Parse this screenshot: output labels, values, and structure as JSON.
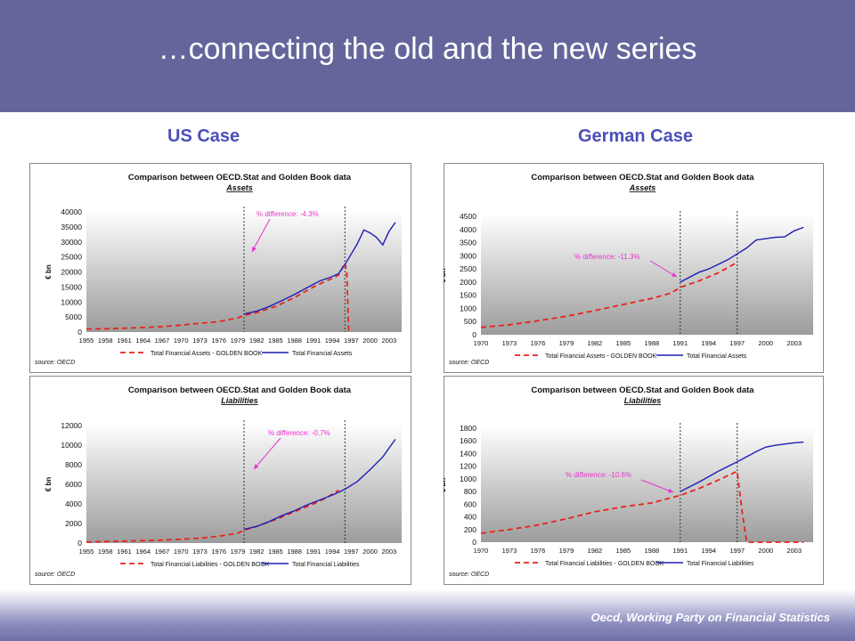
{
  "slide": {
    "title": "…connecting the old and the new series",
    "left_heading": "US Case",
    "right_heading": "German Case",
    "footer": "Oecd, Working Party on Financial Statistics"
  },
  "colors": {
    "header_bg": "#64669b",
    "heading_text": "#4b4fb8",
    "golden_book": "#e8231c",
    "oecd_stat": "#1f1fb5",
    "annotation": "#e832d0"
  },
  "chart_data": [
    {
      "id": "us-assets",
      "type": "line",
      "title": "Comparison between OECD.Stat and Golden Book data",
      "subtitle": "Assets",
      "xlabel": "",
      "ylabel": "€ bn",
      "xlim": [
        1955,
        2005
      ],
      "ylim": [
        0,
        40000
      ],
      "y_ticks": [
        0,
        5000,
        10000,
        15000,
        20000,
        25000,
        30000,
        35000,
        40000
      ],
      "x_ticks": [
        "1955",
        "1958",
        "1961",
        "1964",
        "1967",
        "1970",
        "1973",
        "1976",
        "1979",
        "1982",
        "1985",
        "1988",
        "1991",
        "1994",
        "1997",
        "2000",
        "2003"
      ],
      "vlines": [
        1980,
        1996
      ],
      "annotation": "% difference: -4.3%",
      "source": "source: OECD",
      "legend_position": "bottom",
      "series": [
        {
          "name": "Total Financial Assets - GOLDEN BOOK",
          "style": "dashed",
          "color": "#e8231c",
          "x": [
            1955,
            1958,
            1961,
            1964,
            1967,
            1970,
            1973,
            1976,
            1979,
            1980,
            1982,
            1985,
            1988,
            1991,
            1993,
            1994,
            1995,
            1996,
            1996.3,
            1996.6
          ],
          "y": [
            1000,
            1100,
            1300,
            1500,
            1800,
            2300,
            2900,
            3500,
            4700,
            5500,
            6500,
            8500,
            11500,
            15000,
            17000,
            17800,
            19000,
            23000,
            20000,
            200
          ]
        },
        {
          "name": "Total Financial Assets",
          "style": "solid",
          "color": "#1f1fb5",
          "x": [
            1980,
            1982,
            1984,
            1986,
            1988,
            1990,
            1992,
            1994,
            1995,
            1996,
            1997,
            1998,
            1999,
            2000,
            2001,
            2002,
            2003,
            2004
          ],
          "y": [
            6000,
            7000,
            8500,
            10500,
            12500,
            14800,
            17000,
            18500,
            19500,
            22500,
            26000,
            29500,
            34000,
            33000,
            31500,
            29000,
            33500,
            36500
          ]
        }
      ]
    },
    {
      "id": "us-liabilities",
      "type": "line",
      "title": "Comparison between OECD.Stat and Golden Book data",
      "subtitle": "Liabilities",
      "xlabel": "",
      "ylabel": "€ bn",
      "xlim": [
        1955,
        2005
      ],
      "ylim": [
        0,
        12000
      ],
      "y_ticks": [
        0,
        2000,
        4000,
        6000,
        8000,
        10000,
        12000
      ],
      "x_ticks": [
        "1955",
        "1958",
        "1961",
        "1964",
        "1967",
        "1970",
        "1973",
        "1976",
        "1979",
        "1982",
        "1985",
        "1988",
        "1991",
        "1994",
        "1997",
        "2000",
        "2003"
      ],
      "vlines": [
        1980,
        1996
      ],
      "annotation": "% difference: -0.7%",
      "source": "source: OECD",
      "legend_position": "bottom",
      "series": [
        {
          "name": "Total Financial Liabilities - GOLDEN BOOK",
          "style": "dashed",
          "color": "#e8231c",
          "x": [
            1955,
            1958,
            1961,
            1964,
            1967,
            1970,
            1973,
            1976,
            1979,
            1980,
            1982,
            1985,
            1988,
            1991,
            1993,
            1995
          ],
          "y": [
            100,
            150,
            200,
            250,
            300,
            400,
            500,
            700,
            1000,
            1300,
            1700,
            2400,
            3200,
            4000,
            4600,
            5400
          ]
        },
        {
          "name": "Total Financial Liabilities",
          "style": "solid",
          "color": "#1f1fb5",
          "x": [
            1980,
            1982,
            1984,
            1986,
            1988,
            1990,
            1992,
            1994,
            1996,
            1998,
            2000,
            2002,
            2004
          ],
          "y": [
            1400,
            1700,
            2200,
            2800,
            3300,
            3900,
            4400,
            4900,
            5500,
            6300,
            7500,
            8800,
            10600
          ]
        }
      ]
    },
    {
      "id": "de-assets",
      "type": "line",
      "title": "Comparison between OECD.Stat and Golden Book data",
      "subtitle": "Assets",
      "xlabel": "",
      "ylabel": "€ bn",
      "xlim": [
        1970,
        2005
      ],
      "ylim": [
        0,
        4500
      ],
      "y_ticks": [
        0,
        500,
        1000,
        1500,
        2000,
        2500,
        3000,
        3500,
        4000,
        4500
      ],
      "x_ticks": [
        "1970",
        "1973",
        "1976",
        "1979",
        "1982",
        "1985",
        "1988",
        "1991",
        "1994",
        "1997",
        "2000",
        "2003"
      ],
      "vlines": [
        1991,
        1997
      ],
      "annotation": "% difference: -11.3%",
      "source": "source: OECD",
      "legend_position": "bottom",
      "series": [
        {
          "name": "Total Financial Assets - GOLDEN BOOK",
          "style": "dashed",
          "color": "#e8231c",
          "x": [
            1970,
            1973,
            1976,
            1979,
            1982,
            1985,
            1988,
            1990,
            1991,
            1993,
            1995,
            1997
          ],
          "y": [
            280,
            380,
            530,
            700,
            920,
            1150,
            1380,
            1580,
            1800,
            2050,
            2350,
            2750
          ]
        },
        {
          "name": "Total Financial Assets",
          "style": "solid",
          "color": "#1f1fb5",
          "x": [
            1991,
            1993,
            1994,
            1996,
            1998,
            1999,
            2000,
            2001,
            2002,
            2003,
            2004
          ],
          "y": [
            2000,
            2380,
            2500,
            2850,
            3300,
            3600,
            3650,
            3700,
            3720,
            3950,
            4080
          ]
        }
      ]
    },
    {
      "id": "de-liabilities",
      "type": "line",
      "title": "Comparison between OECD.Stat and Golden Book data",
      "subtitle": "Liabilities",
      "xlabel": "",
      "ylabel": "€ bn",
      "xlim": [
        1970,
        2005
      ],
      "ylim": [
        0,
        1800
      ],
      "y_ticks": [
        0,
        200,
        400,
        600,
        800,
        1000,
        1200,
        1400,
        1600,
        1800
      ],
      "x_ticks": [
        "1970",
        "1973",
        "1976",
        "1979",
        "1982",
        "1985",
        "1988",
        "1991",
        "1994",
        "1997",
        "2000",
        "2003"
      ],
      "vlines": [
        1991,
        1997
      ],
      "annotation": "% difference: -10.6%",
      "source": "source: OECD",
      "legend_position": "bottom",
      "series": [
        {
          "name": "Total Financial Liabilities - GOLDEN BOOK",
          "style": "dashed",
          "color": "#e8231c",
          "x": [
            1970,
            1973,
            1976,
            1979,
            1982,
            1985,
            1988,
            1990,
            1991,
            1993,
            1995,
            1997,
            1997.5,
            1998,
            2000,
            2004
          ],
          "y": [
            140,
            200,
            270,
            370,
            480,
            560,
            620,
            700,
            740,
            850,
            980,
            1120,
            500,
            0,
            0,
            0
          ]
        },
        {
          "name": "Total Financial Liabilities",
          "style": "solid",
          "color": "#1f1fb5",
          "x": [
            1991,
            1993,
            1995,
            1997,
            1999,
            2000,
            2001,
            2002,
            2003,
            2004
          ],
          "y": [
            800,
            950,
            1120,
            1270,
            1430,
            1500,
            1530,
            1550,
            1570,
            1580
          ]
        }
      ]
    }
  ]
}
